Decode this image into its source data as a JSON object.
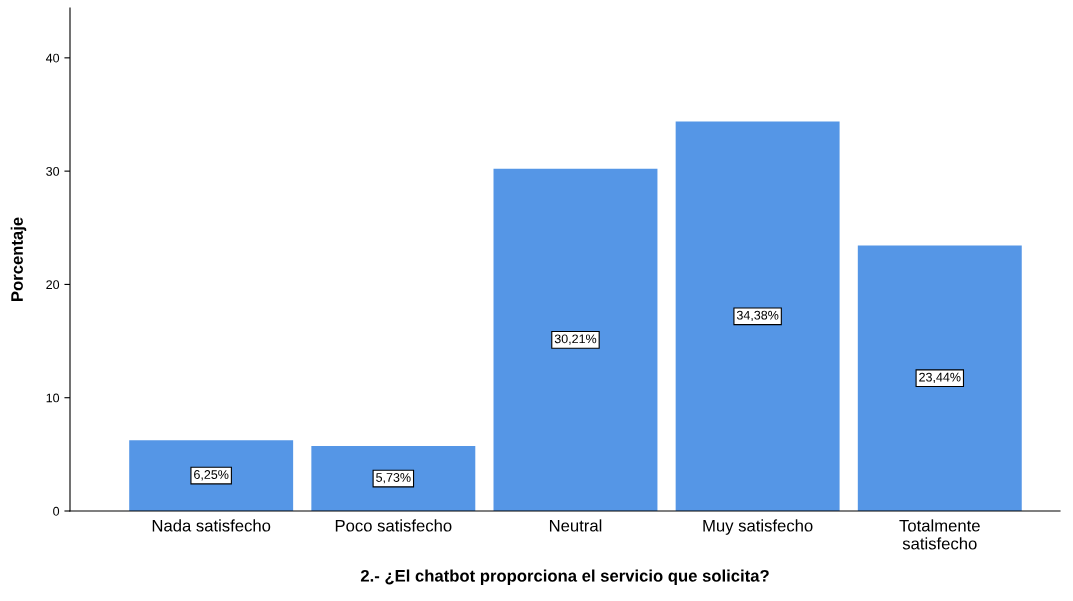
{
  "chart_data": {
    "type": "bar",
    "xlabel": "2.- ¿El chatbot proporciona el servicio que solicita?",
    "ylabel": "Porcentaje",
    "categories": [
      "Nada satisfecho",
      "Poco satisfecho",
      "Neutral",
      "Muy satisfecho",
      "Totalmente satisfecho"
    ],
    "values": [
      6.25,
      5.73,
      30.21,
      34.38,
      23.44
    ],
    "value_labels": [
      "6,25%",
      "5,73%",
      "30,21%",
      "34,38%",
      "23,44%"
    ],
    "color": "#5596e6",
    "ylim": [
      0,
      44.4
    ],
    "yticks": [
      0,
      10,
      20,
      30,
      40
    ],
    "grid": false,
    "legend": false
  }
}
